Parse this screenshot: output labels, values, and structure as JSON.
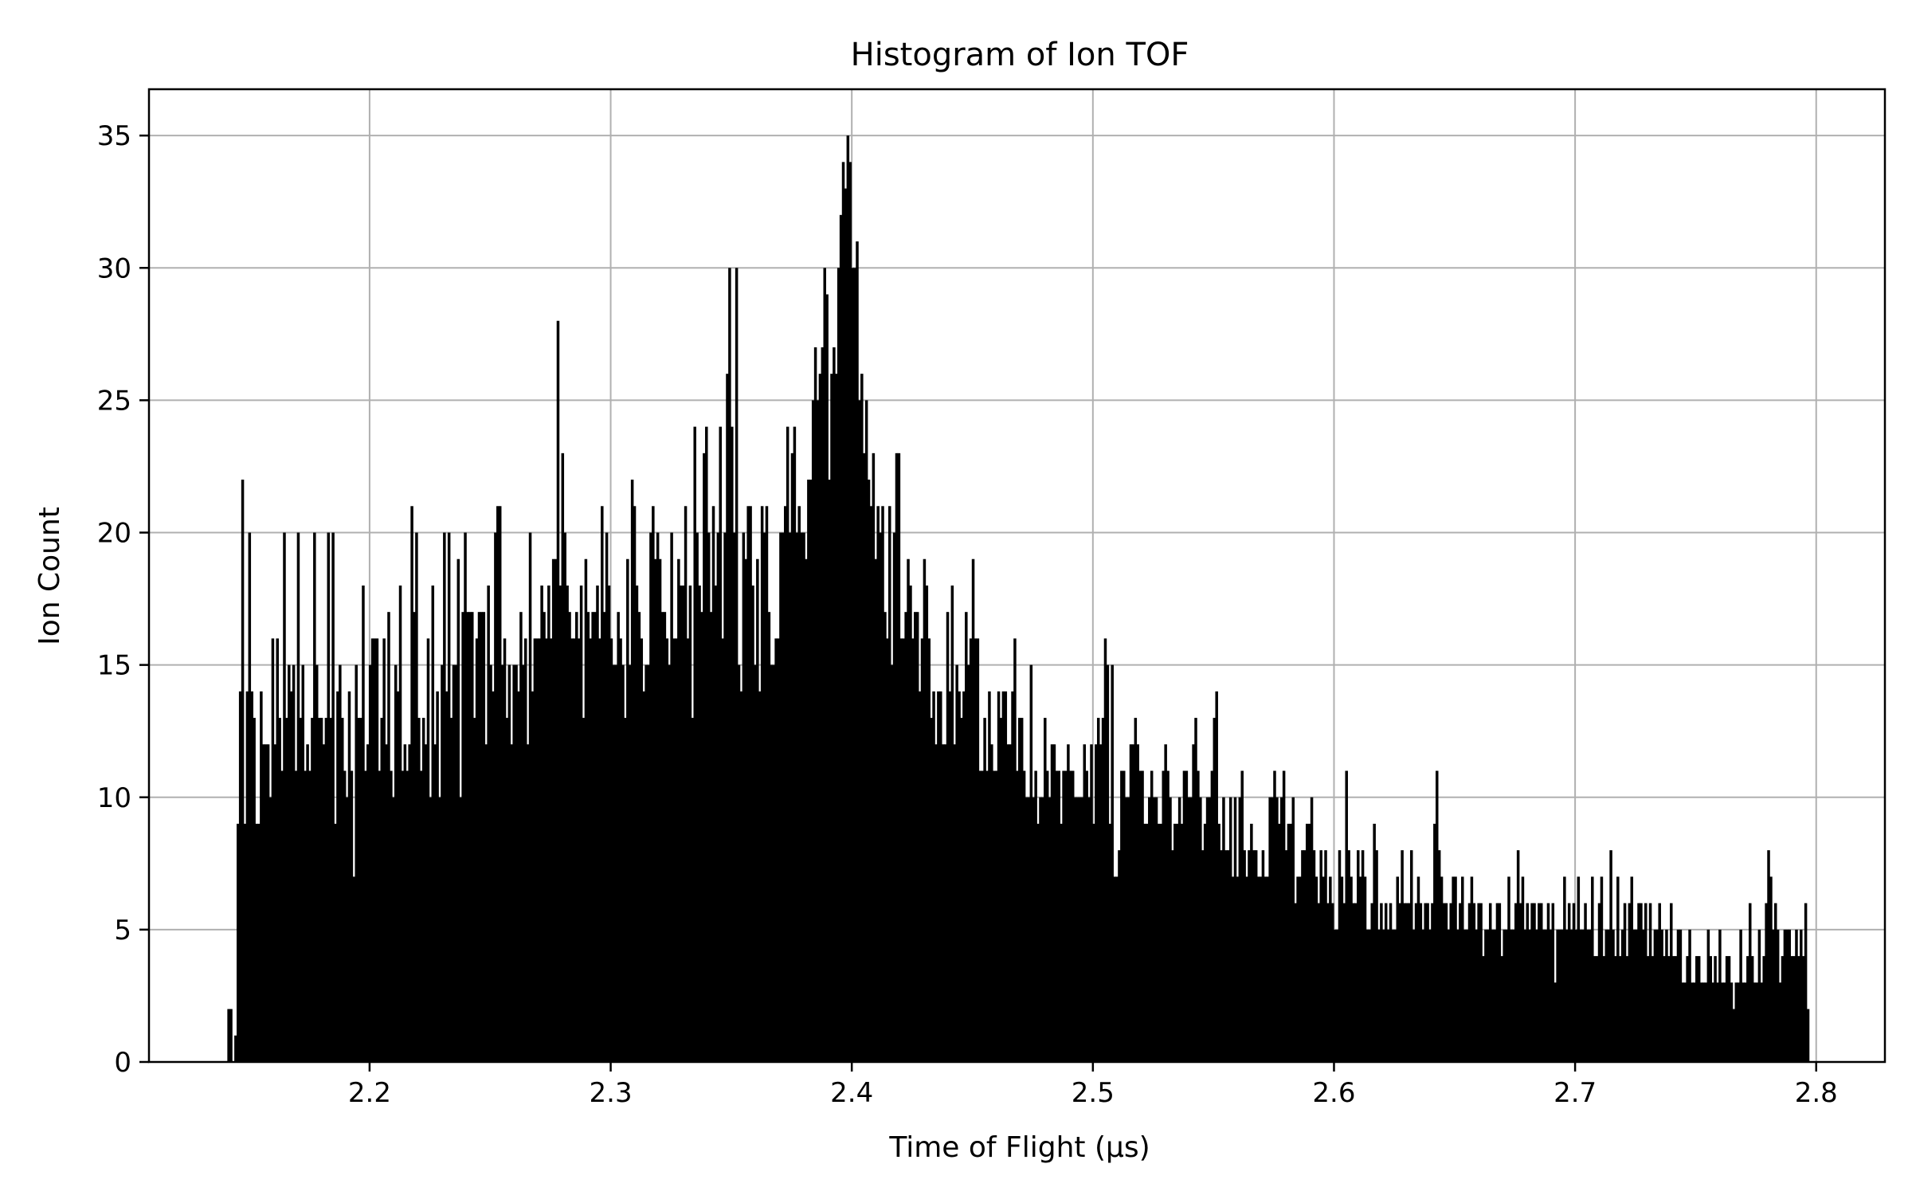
{
  "chart_data": {
    "type": "bar",
    "title": "Histogram of Ion TOF",
    "xlabel": "Time of Flight (μs)",
    "ylabel": "Ion Count",
    "xlim": [
      2.1085,
      2.8285
    ],
    "ylim": [
      0,
      36.75
    ],
    "xticks": [
      2.2,
      2.3,
      2.4,
      2.5,
      2.6,
      2.7,
      2.8
    ],
    "xtick_labels": [
      "2.2",
      "2.3",
      "2.4",
      "2.5",
      "2.6",
      "2.7",
      "2.8"
    ],
    "yticks": [
      0,
      5,
      10,
      15,
      20,
      25,
      30,
      35
    ],
    "ytick_labels": [
      "0",
      "5",
      "10",
      "15",
      "20",
      "25",
      "30",
      "35"
    ],
    "grid": true,
    "bar_color": "#000000",
    "bin_start": 2.141,
    "bin_end": 2.797,
    "counts": [
      2,
      2,
      0,
      1,
      9,
      14,
      22,
      9,
      14,
      20,
      14,
      13,
      9,
      9,
      14,
      12,
      12,
      12,
      10,
      16,
      12,
      16,
      13,
      11,
      20,
      13,
      15,
      14,
      15,
      11,
      20,
      13,
      15,
      11,
      12,
      11,
      13,
      20,
      15,
      13,
      13,
      12,
      13,
      20,
      13,
      20,
      9,
      14,
      15,
      13,
      11,
      10,
      14,
      11,
      7,
      15,
      13,
      13,
      18,
      11,
      12,
      15,
      16,
      16,
      16,
      11,
      13,
      16,
      12,
      17,
      11,
      10,
      15,
      14,
      18,
      11,
      12,
      11,
      12,
      21,
      17,
      20,
      13,
      11,
      13,
      12,
      16,
      10,
      18,
      12,
      14,
      10,
      15,
      20,
      14,
      20,
      13,
      15,
      15,
      19,
      10,
      17,
      20,
      17,
      17,
      17,
      13,
      16,
      17,
      17,
      17,
      12,
      18,
      15,
      14,
      20,
      21,
      21,
      15,
      16,
      13,
      15,
      12,
      15,
      15,
      14,
      17,
      15,
      16,
      12,
      20,
      14,
      16,
      16,
      16,
      18,
      17,
      16,
      18,
      16,
      19,
      19,
      28,
      18,
      23,
      20,
      18,
      17,
      16,
      16,
      17,
      16,
      18,
      13,
      19,
      17,
      16,
      17,
      17,
      18,
      16,
      21,
      17,
      20,
      18,
      16,
      15,
      15,
      17,
      16,
      15,
      13,
      19,
      15,
      22,
      21,
      18,
      17,
      16,
      14,
      15,
      15,
      20,
      21,
      19,
      20,
      19,
      17,
      17,
      16,
      15,
      20,
      16,
      16,
      19,
      18,
      18,
      21,
      16,
      18,
      13,
      24,
      20,
      18,
      17,
      23,
      24,
      20,
      17,
      21,
      18,
      20,
      24,
      16,
      20,
      26,
      30,
      24,
      20,
      30,
      15,
      14,
      20,
      19,
      21,
      21,
      18,
      15,
      19,
      14,
      21,
      20,
      21,
      17,
      15,
      15,
      16,
      16,
      20,
      20,
      21,
      24,
      20,
      23,
      24,
      20,
      21,
      20,
      20,
      19,
      22,
      22,
      25,
      27,
      25,
      26,
      27,
      30,
      29,
      22,
      26,
      27,
      26,
      30,
      32,
      34,
      33,
      35,
      34,
      30,
      30,
      31,
      25,
      26,
      23,
      25,
      22,
      21,
      23,
      19,
      21,
      20,
      21,
      17,
      16,
      21,
      15,
      20,
      23,
      23,
      16,
      16,
      17,
      19,
      18,
      16,
      17,
      17,
      14,
      16,
      19,
      18,
      16,
      13,
      14,
      12,
      14,
      14,
      12,
      12,
      17,
      14,
      18,
      12,
      15,
      14,
      13,
      14,
      17,
      15,
      16,
      19,
      16,
      16,
      11,
      11,
      13,
      11,
      14,
      12,
      11,
      11,
      14,
      13,
      14,
      14,
      12,
      12,
      14,
      16,
      11,
      13,
      13,
      11,
      10,
      10,
      15,
      10,
      11,
      9,
      10,
      10,
      13,
      11,
      10,
      12,
      12,
      11,
      11,
      9,
      11,
      11,
      12,
      11,
      11,
      10,
      10,
      10,
      10,
      12,
      11,
      10,
      12,
      9,
      12,
      13,
      12,
      13,
      16,
      15,
      9,
      15,
      7,
      7,
      8,
      11,
      11,
      10,
      10,
      12,
      12,
      13,
      12,
      11,
      11,
      9,
      9,
      10,
      11,
      10,
      10,
      9,
      9,
      11,
      12,
      11,
      10,
      8,
      9,
      9,
      10,
      9,
      11,
      11,
      10,
      10,
      12,
      13,
      11,
      10,
      8,
      9,
      10,
      10,
      11,
      13,
      14,
      9,
      8,
      10,
      8,
      8,
      10,
      7,
      10,
      7,
      10,
      11,
      8,
      7,
      8,
      9,
      8,
      8,
      7,
      7,
      8,
      7,
      7,
      10,
      10,
      11,
      10,
      9,
      10,
      11,
      8,
      9,
      9,
      10,
      6,
      7,
      7,
      8,
      8,
      9,
      9,
      10,
      8,
      7,
      6,
      8,
      7,
      8,
      6,
      7,
      6,
      5,
      5,
      8,
      7,
      6,
      11,
      8,
      7,
      6,
      6,
      8,
      7,
      8,
      7,
      5,
      5,
      6,
      9,
      8,
      5,
      6,
      5,
      6,
      5,
      6,
      5,
      5,
      7,
      6,
      8,
      6,
      6,
      6,
      8,
      5,
      6,
      7,
      6,
      5,
      6,
      6,
      5,
      6,
      9,
      11,
      8,
      7,
      6,
      6,
      5,
      6,
      7,
      7,
      5,
      6,
      7,
      5,
      5,
      6,
      7,
      6,
      5,
      6,
      6,
      4,
      5,
      5,
      6,
      5,
      5,
      6,
      6,
      4,
      5,
      5,
      7,
      5,
      5,
      6,
      8,
      6,
      7,
      5,
      6,
      5,
      6,
      6,
      5,
      6,
      6,
      5,
      5,
      6,
      5,
      6,
      3,
      5,
      5,
      5,
      7,
      5,
      6,
      5,
      6,
      5,
      7,
      5,
      5,
      6,
      5,
      5,
      7,
      4,
      4,
      6,
      7,
      4,
      5,
      5,
      8,
      5,
      4,
      7,
      4,
      5,
      6,
      4,
      6,
      7,
      5,
      5,
      6,
      6,
      5,
      6,
      4,
      6,
      4,
      5,
      5,
      6,
      5,
      4,
      5,
      4,
      6,
      4,
      4,
      5,
      5,
      3,
      3,
      4,
      5,
      3,
      3,
      4,
      4,
      3,
      3,
      3,
      5,
      4,
      3,
      4,
      3,
      5,
      3,
      3,
      4,
      4,
      3,
      2,
      3,
      3,
      5,
      3,
      3,
      4,
      6,
      4,
      3,
      3,
      5,
      3,
      4,
      6,
      8,
      7,
      5,
      6,
      5,
      3,
      4,
      5,
      5,
      5,
      4,
      4,
      5,
      4,
      5,
      4,
      6,
      2
    ]
  }
}
